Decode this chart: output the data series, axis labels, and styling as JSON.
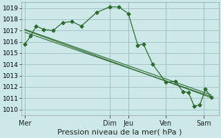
{
  "bg_color": "#cce8e8",
  "grid_color": "#9bbfbf",
  "line_color": "#2d6a2d",
  "title": "Pression niveau de la mer( hPa )",
  "ylim": [
    1009.5,
    1019.5
  ],
  "yticks": [
    1010,
    1011,
    1012,
    1013,
    1014,
    1015,
    1016,
    1017,
    1018,
    1019
  ],
  "day_labels": [
    "Mer",
    "Dim",
    "Jeu",
    "Ven",
    "Sam"
  ],
  "day_positions": [
    0.0,
    4.5,
    5.5,
    7.5,
    9.5
  ],
  "day_line_positions": [
    0.0,
    4.5,
    5.5,
    7.5,
    9.5
  ],
  "xlim": [
    -0.2,
    10.3
  ],
  "series1_x": [
    0.0,
    0.3,
    0.6,
    1.0,
    1.5,
    2.0,
    2.5,
    3.0,
    3.8,
    4.5,
    5.0,
    5.5,
    6.0,
    6.3,
    6.8,
    7.5,
    8.0,
    8.4,
    8.7,
    9.0,
    9.3,
    9.6,
    9.9
  ],
  "series1_y": [
    1015.8,
    1016.5,
    1017.4,
    1017.1,
    1017.0,
    1017.7,
    1017.8,
    1017.4,
    1018.6,
    1019.1,
    1019.1,
    1018.5,
    1015.7,
    1015.8,
    1014.0,
    1012.4,
    1012.5,
    1011.6,
    1011.5,
    1010.3,
    1010.4,
    1011.8,
    1011.1
  ],
  "series2_x": [
    0.0,
    9.9
  ],
  "series2_y": [
    1016.85,
    1011.15
  ],
  "series3_x": [
    0.0,
    9.9
  ],
  "series3_y": [
    1017.1,
    1011.3
  ],
  "series4_x": [
    0.0,
    9.9
  ],
  "series4_y": [
    1017.05,
    1011.05
  ],
  "ylabel_fontsize": 6.5,
  "xlabel_fontsize": 8.0,
  "tick_fontsize": 7.0
}
